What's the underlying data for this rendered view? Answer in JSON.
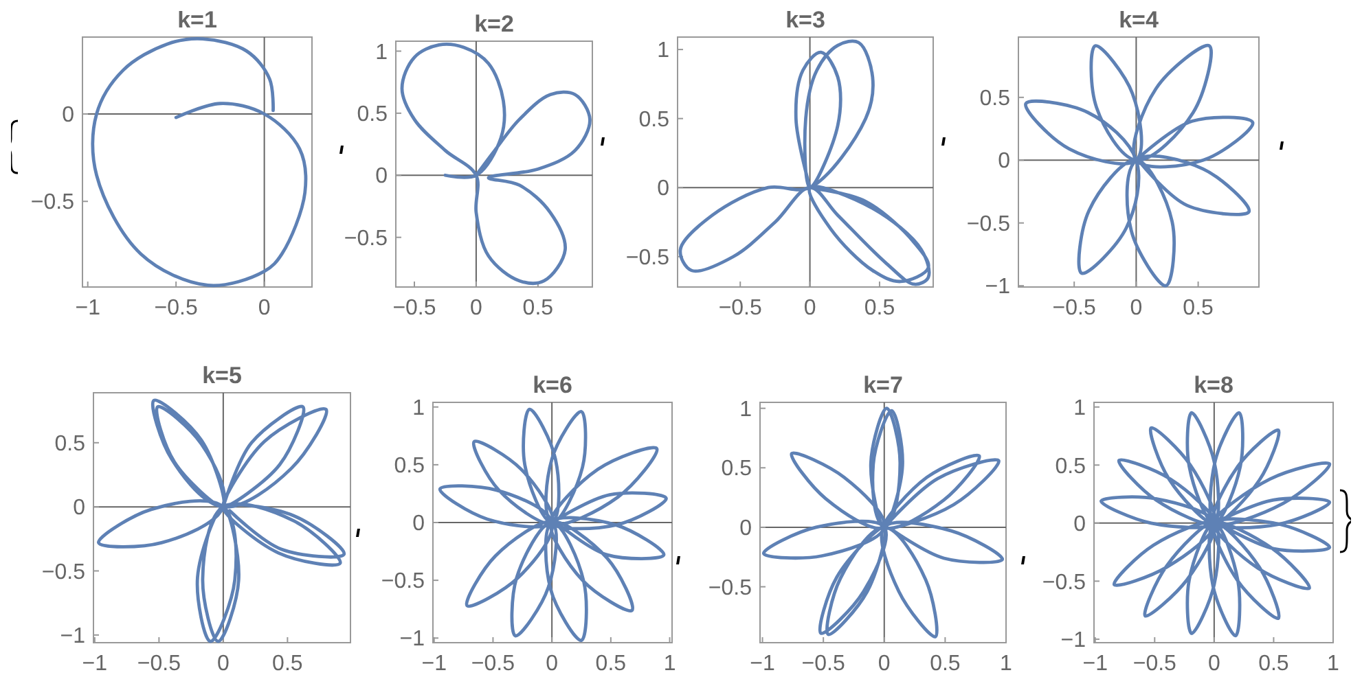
{
  "chart_data": [
    {
      "type": "line",
      "title": "k=1",
      "xlim": [
        -1.03,
        0.27
      ],
      "ylim": [
        -0.99,
        0.44
      ],
      "xticks": [
        -1,
        -0.5,
        0
      ],
      "yticks": [
        -0.5,
        0
      ],
      "series": [
        {
          "color": "#5e81b5",
          "x": [
            -0.5,
            -0.25,
            0,
            0.2,
            0.23,
            0.1,
            0,
            -0.32,
            -0.7,
            -0.95,
            -0.95,
            -0.8,
            -0.55,
            -0.35,
            -0.1,
            0.03,
            0.05
          ],
          "values": [
            -0.02,
            0.06,
            0,
            -0.2,
            -0.45,
            -0.8,
            -0.9,
            -0.98,
            -0.8,
            -0.35,
            0,
            0.25,
            0.4,
            0.43,
            0.36,
            0.2,
            0.02
          ]
        }
      ]
    },
    {
      "type": "line",
      "title": "k=2",
      "xlim": [
        -0.65,
        0.94
      ],
      "ylim": [
        -0.9,
        1.08
      ],
      "xticks": [
        -0.5,
        0,
        0.5
      ],
      "yticks": [
        -0.5,
        0,
        0.5,
        1
      ],
      "series": [
        {
          "color": "#5e81b5",
          "x": [
            -0.25,
            0,
            0.2,
            0.22,
            0.1,
            -0.1,
            -0.3,
            -0.5,
            -0.6,
            -0.5,
            -0.25,
            0,
            0,
            0.1,
            0.35,
            0.55,
            0.72,
            0.6,
            0.35,
            0.1,
            0.5,
            0.8,
            0.92,
            0.8,
            0.6,
            0.35,
            0.15,
            0
          ],
          "values": [
            0,
            0,
            0.3,
            0.6,
            0.9,
            1.03,
            1.05,
            0.95,
            0.7,
            0.45,
            0.2,
            0,
            -0.3,
            -0.65,
            -0.85,
            -0.85,
            -0.6,
            -0.3,
            -0.08,
            -0.02,
            0.05,
            0.2,
            0.45,
            0.65,
            0.65,
            0.45,
            0.2,
            0
          ]
        }
      ]
    },
    {
      "type": "line",
      "title": "k=3",
      "xlim": [
        -0.95,
        0.885
      ],
      "ylim": [
        -0.72,
        1.09
      ],
      "xticks": [
        -0.5,
        0,
        0.5
      ],
      "yticks": [
        -0.5,
        0,
        0.5,
        1
      ],
      "series": [
        {
          "color": "#5e81b5",
          "x": [
            0,
            -0.1,
            -0.05,
            0.08,
            0.2,
            0.2,
            0,
            -0.03,
            0.05,
            0.2,
            0.35,
            0.45,
            0.4,
            0,
            -0.3,
            -0.7,
            -0.93,
            -0.85,
            -0.55,
            -0.25,
            0,
            0.2,
            0.55,
            0.75,
            0.85,
            0.8,
            0.45,
            0,
            0.15,
            0.45,
            0.65,
            0.85,
            0.75,
            0.4,
            0.05
          ],
          "values": [
            0,
            0.5,
            0.85,
            0.98,
            0.8,
            0.45,
            0,
            0.5,
            0.85,
            1.03,
            1.05,
            0.8,
            0.5,
            0,
            0,
            -0.2,
            -0.45,
            -0.6,
            -0.5,
            -0.25,
            0,
            -0.2,
            -0.55,
            -0.7,
            -0.65,
            -0.45,
            -0.15,
            0,
            -0.3,
            -0.6,
            -0.68,
            -0.58,
            -0.4,
            -0.1,
            -0.01
          ]
        }
      ]
    },
    {
      "type": "line",
      "title": "k=4",
      "xlim": [
        -0.95,
        0.99
      ],
      "ylim": [
        -1.01,
        0.98
      ],
      "xticks": [
        -0.5,
        0,
        0.5
      ],
      "yticks": [
        -1,
        -0.5,
        0,
        0.5
      ],
      "series": [
        {
          "color": "#5e81b5",
          "x": [
            0,
            0.45,
            0.94,
            0.54,
            0,
            0.16,
            0.59,
            0.46,
            0,
            -0.32,
            -0.33,
            -0.03,
            0,
            -0.54,
            -0.89,
            -0.39,
            0,
            -0.08,
            -0.44,
            -0.38,
            0,
            0.29,
            0.24,
            -0.04,
            0,
            0.54,
            0.91,
            0.41,
            0.05
          ],
          "values": [
            0,
            0.31,
            0.3,
            0,
            0,
            0.57,
            0.91,
            0.38,
            0,
            0.42,
            0.91,
            0.53,
            0,
            0.09,
            0.45,
            0.38,
            0,
            -0.54,
            -0.9,
            -0.4,
            0,
            -0.49,
            -1,
            -0.56,
            0,
            -0.07,
            -0.41,
            -0.36,
            -0.04
          ]
        }
      ]
    },
    {
      "type": "line",
      "title": "k=5",
      "xlim": [
        -1.01,
        0.99
      ],
      "ylim": [
        -1.06,
        0.89
      ],
      "xticks": [
        -1,
        -0.5,
        0,
        0.5
      ],
      "yticks": [
        -1,
        -0.5,
        0,
        0.5
      ],
      "series": [
        {
          "color": "#5e81b5",
          "x": [
            0,
            0.22,
            0.62,
            0.44,
            0,
            0.32,
            0.8,
            0.53,
            0,
            -0.4,
            -0.54,
            -0.17,
            0,
            -0.38,
            -0.51,
            -0.17,
            0,
            -0.48,
            -0.97,
            -0.56,
            0,
            0.09,
            -0.1,
            -0.2,
            0,
            0.12,
            -0.04,
            -0.16,
            0,
            0.55,
            0.91,
            0.43,
            0,
            0.55,
            0.94,
            0.45,
            0.05
          ],
          "values": [
            0,
            0.5,
            0.78,
            0.33,
            0,
            0.51,
            0.76,
            0.3,
            0,
            0.37,
            0.83,
            0.52,
            0,
            0.35,
            0.78,
            0.49,
            0,
            -0.28,
            -0.28,
            -0.02,
            0,
            -0.57,
            -1.05,
            -0.55,
            0,
            -0.57,
            -1.05,
            -0.56,
            0,
            -0.11,
            -0.44,
            -0.36,
            0,
            -0.07,
            -0.37,
            -0.33,
            -0.03
          ]
        }
      ]
    },
    {
      "type": "line",
      "title": "k=6",
      "xlim": [
        -1.01,
        1.02
      ],
      "ylim": [
        -1.04,
        1.04
      ],
      "xticks": [
        -1,
        -0.5,
        0,
        0.5,
        1
      ],
      "yticks": [
        -1,
        -0.5,
        0,
        0.5,
        1
      ],
      "series": [
        {
          "color": "#5e81b5",
          "x": [
            0,
            0.49,
            0.97,
            0.55,
            0,
            0.39,
            0.89,
            0.56,
            0,
            0,
            0.25,
            0.26,
            0,
            -0.23,
            -0.19,
            0.03,
            0,
            -0.45,
            -0.66,
            -0.26,
            0,
            -0.55,
            -0.95,
            -0.47,
            0,
            -0.29,
            -0.72,
            -0.48,
            0,
            -0.03,
            -0.31,
            -0.3,
            0,
            0.27,
            0.25,
            -0.01,
            0,
            0.47,
            0.68,
            0.26,
            0,
            0.54,
            0.95,
            0.47,
            0.05
          ],
          "values": [
            0,
            0.24,
            0.21,
            -0.02,
            0,
            0.46,
            0.64,
            0.22,
            0,
            0.55,
            0.96,
            0.48,
            0,
            0.5,
            0.98,
            0.55,
            0,
            0.28,
            0.7,
            0.46,
            0,
            0.03,
            0.29,
            0.28,
            0,
            -0.48,
            -0.72,
            -0.29,
            0,
            -0.56,
            -0.98,
            -0.48,
            0,
            -0.51,
            -1.02,
            -0.58,
            0,
            -0.31,
            -0.76,
            -0.5,
            0,
            -0.02,
            -0.28,
            -0.28,
            -0.01
          ]
        }
      ]
    },
    {
      "type": "line",
      "title": "k=7",
      "xlim": [
        -1.02,
        1
      ],
      "ylim": [
        -0.97,
        1.05
      ],
      "xticks": [
        -1,
        -0.5,
        0,
        0.5,
        1
      ],
      "yticks": [
        -0.5,
        0,
        0.5,
        1
      ],
      "series": [
        {
          "color": "#5e81b5",
          "x": [
            0,
            0.44,
            0.94,
            0.57,
            0,
            0.35,
            0.78,
            0.49,
            0,
            -0.09,
            0.06,
            0.15,
            0,
            -0.11,
            0.02,
            0.13,
            0,
            -0.48,
            -0.76,
            -0.33,
            0,
            -0.51,
            -0.99,
            -0.56,
            0,
            -0.17,
            -0.52,
            -0.39,
            0,
            -0.14,
            -0.46,
            -0.36,
            0,
            0.34,
            0.42,
            0.12,
            0,
            0.55,
            0.97,
            0.49,
            0.05
          ],
          "values": [
            0,
            0.41,
            0.56,
            0.19,
            0,
            0.42,
            0.6,
            0.23,
            0,
            0.53,
            0.98,
            0.52,
            0,
            0.54,
            1,
            0.54,
            0,
            0.24,
            0.62,
            0.42,
            0,
            -0.24,
            -0.22,
            0,
            0,
            -0.54,
            -0.89,
            -0.42,
            0,
            -0.54,
            -0.9,
            -0.43,
            0,
            -0.44,
            -0.92,
            -0.54,
            0,
            -0.03,
            -0.27,
            -0.26,
            -0.01
          ]
        }
      ]
    },
    {
      "type": "line",
      "title": "k=8",
      "xlim": [
        -1.01,
        1
      ],
      "ylim": [
        -1.03,
        1.04
      ],
      "xticks": [
        -1,
        -0.5,
        0,
        0.5,
        1
      ],
      "yticks": [
        -1,
        -0.5,
        0,
        0.5,
        1
      ],
      "series": [
        {
          "color": "#5e81b5",
          "x": [
            0,
            0.5,
            0.97,
            0.54,
            0,
            0.47,
            0.97,
            0.58,
            0,
            0.2,
            0.54,
            0.38,
            0,
            0.01,
            0.21,
            0.22,
            0,
            -0.21,
            -0.19,
            0,
            0,
            -0.38,
            -0.53,
            -0.2,
            0,
            -0.49,
            -0.8,
            -0.37,
            0,
            -0.53,
            -0.95,
            -0.49,
            0,
            -0.4,
            -0.84,
            -0.51,
            0,
            -0.23,
            -0.58,
            -0.4,
            0,
            0,
            -0.19,
            -0.21,
            0,
            0.2,
            0.18,
            -0.01,
            0,
            0.38,
            0.54,
            0.2,
            0,
            0.49,
            0.8,
            0.37,
            0,
            0.55,
            0.97,
            0.5,
            0.05
          ],
          "values": [
            0,
            0.2,
            0.18,
            -0.01,
            0,
            0.38,
            0.51,
            0.17,
            0,
            0.49,
            0.8,
            0.37,
            0,
            0.54,
            0.95,
            0.49,
            0,
            0.49,
            0.95,
            0.53,
            0,
            0.38,
            0.82,
            0.5,
            0,
            0.2,
            0.54,
            0.38,
            0,
            0,
            0.19,
            0.21,
            0,
            -0.38,
            -0.53,
            -0.19,
            0,
            -0.49,
            -0.8,
            -0.37,
            0,
            -0.53,
            -0.95,
            -0.49,
            0,
            -0.5,
            -0.97,
            -0.54,
            0,
            -0.38,
            -0.82,
            -0.5,
            0,
            -0.22,
            -0.56,
            -0.39,
            0,
            -0.01,
            -0.21,
            -0.22,
            -0.01
          ]
        }
      ]
    }
  ]
}
